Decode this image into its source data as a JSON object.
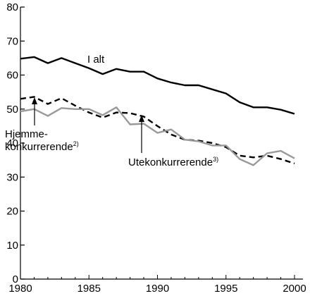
{
  "chart_data": {
    "type": "line",
    "title": "",
    "xlabel": "",
    "ylabel": "",
    "xlim": [
      1980,
      2000
    ],
    "ylim": [
      0,
      80
    ],
    "grid": false,
    "x_ticks": [
      1980,
      1985,
      1990,
      1995,
      2000
    ],
    "y_ticks": [
      0,
      10,
      20,
      30,
      40,
      50,
      60,
      70,
      80
    ],
    "x": [
      1980,
      1981,
      1982,
      1983,
      1984,
      1985,
      1986,
      1987,
      1988,
      1989,
      1990,
      1991,
      1992,
      1993,
      1994,
      1995,
      1996,
      1997,
      1998,
      1999,
      2000
    ],
    "series": [
      {
        "name": "I alt",
        "color": "#000000",
        "style": "solid",
        "values": [
          64.8,
          65.3,
          63.5,
          65.0,
          63.5,
          62.0,
          60.3,
          61.8,
          61.0,
          61.0,
          59.0,
          57.8,
          57.0,
          57.0,
          55.8,
          54.6,
          52.0,
          50.5,
          50.5,
          49.8,
          48.6
        ]
      },
      {
        "name": "Utekonkurrerende",
        "name_sup": "3)",
        "color": "#000000",
        "style": "dashed",
        "values": [
          53.0,
          53.6,
          51.5,
          53.2,
          51.0,
          49.0,
          47.5,
          49.0,
          48.8,
          47.8,
          45.0,
          42.5,
          41.0,
          40.7,
          40.0,
          38.8,
          36.3,
          35.8,
          36.3,
          35.3,
          34.0
        ]
      },
      {
        "name_lines": [
          "Hjemme-",
          "konkurrerende"
        ],
        "name_sup": "2)",
        "color": "#999999",
        "style": "solid",
        "values": [
          49.3,
          50.0,
          48.0,
          50.3,
          50.0,
          50.0,
          48.2,
          50.5,
          45.5,
          45.7,
          43.0,
          44.0,
          41.0,
          40.5,
          39.3,
          39.3,
          35.3,
          33.5,
          37.0,
          37.7,
          35.5
        ]
      }
    ]
  }
}
